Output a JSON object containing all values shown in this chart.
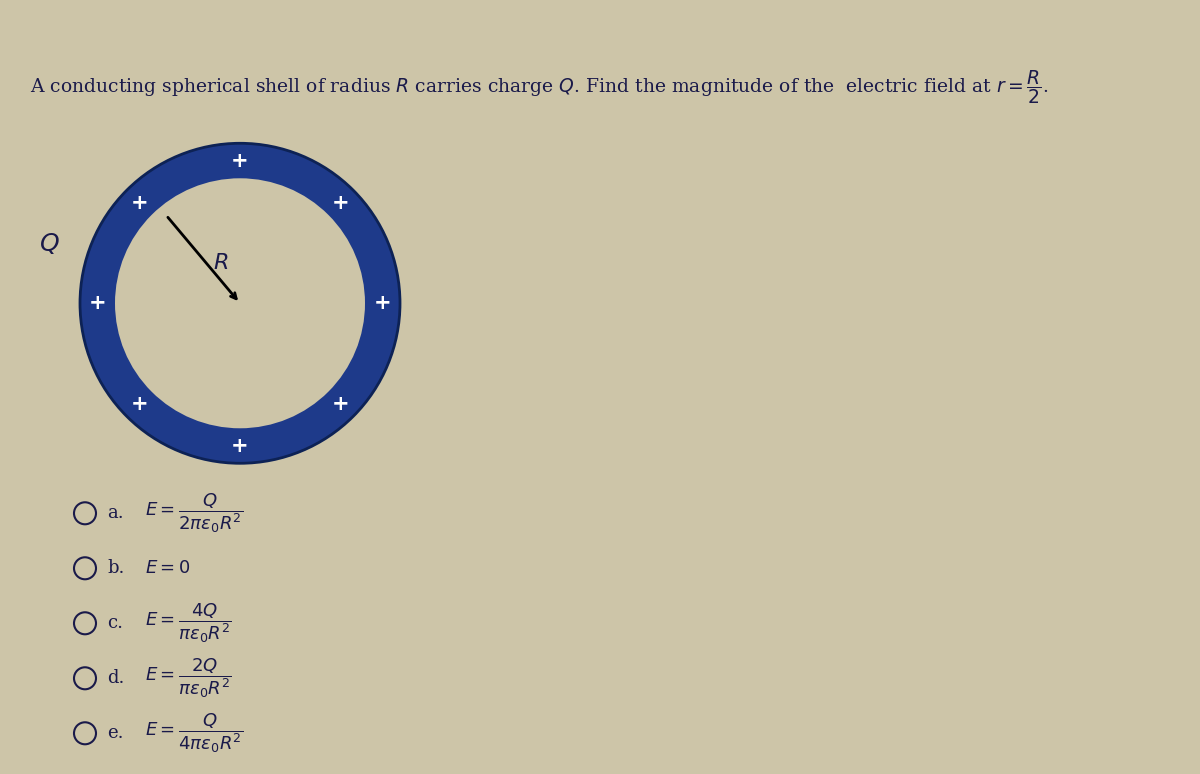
{
  "bg_color": "#cdc5a8",
  "top_bar_color": "#8a8fa8",
  "title_text": "A conducting spherical shell of radius $\\mathit{R}$ carries charge $\\mathit{Q}$. Find the magnitude of the  electric field at $r = \\dfrac{R}{2}$.",
  "title_fontsize": 13.5,
  "ring_color": "#1e3a8a",
  "ring_interior_color": "#cdc5a8",
  "plus_color": "#ffffff",
  "plus_angles": [
    90,
    45,
    0,
    315,
    270,
    225,
    180,
    135
  ],
  "options": [
    {
      "label": "a.",
      "formula": "$E = \\dfrac{Q}{2\\pi\\epsilon_0 R^2}$"
    },
    {
      "label": "b.",
      "formula": "$E = 0$"
    },
    {
      "label": "c.",
      "formula": "$E = \\dfrac{4Q}{\\pi\\epsilon_0 R^2}$"
    },
    {
      "label": "d.",
      "formula": "$E = \\dfrac{2Q}{\\pi\\epsilon_0 R^2}$"
    },
    {
      "label": "e.",
      "formula": "$E = \\dfrac{Q}{4\\pi\\epsilon_0 R^2}$"
    }
  ],
  "text_color": "#1a1a4a"
}
